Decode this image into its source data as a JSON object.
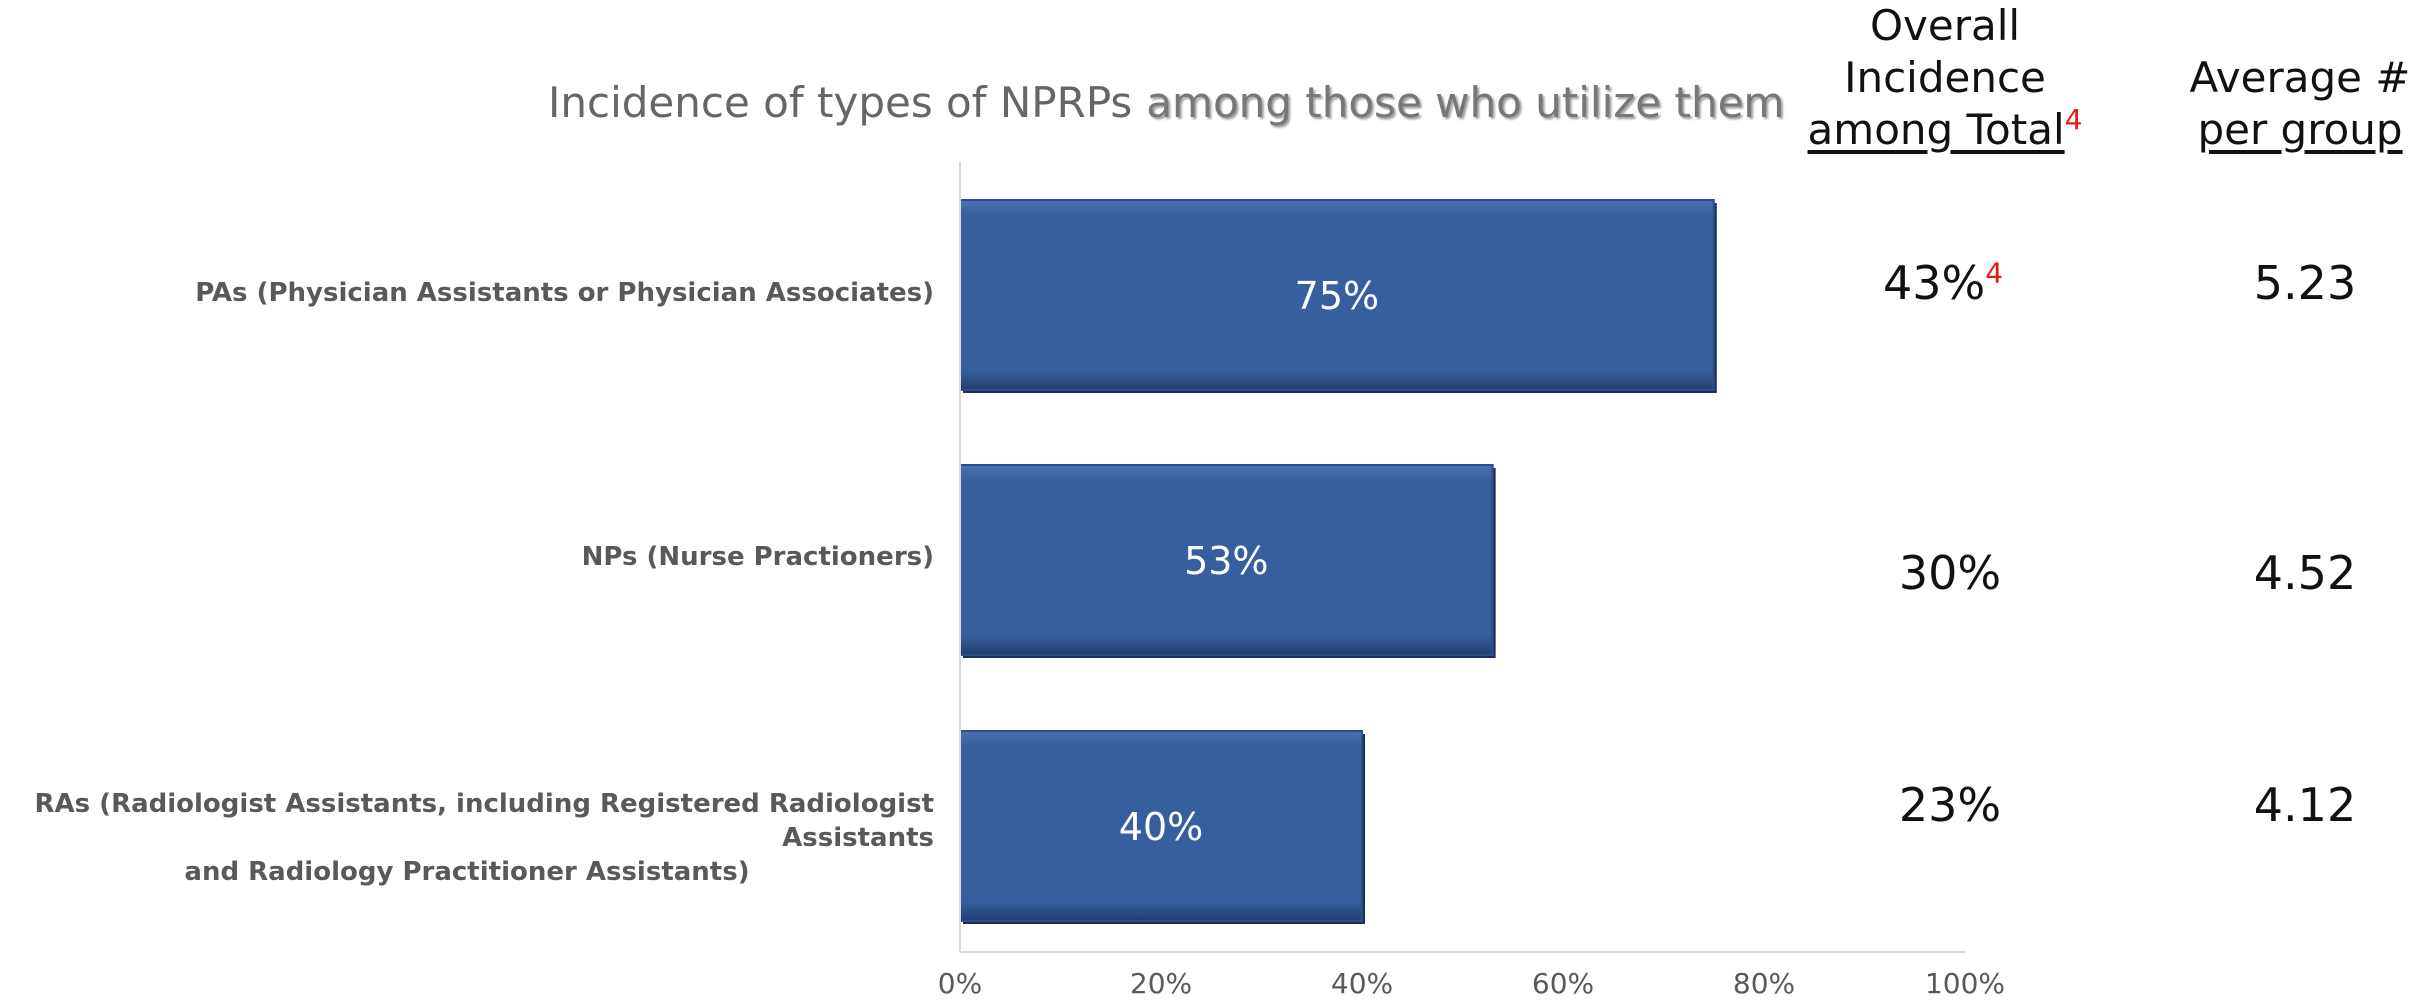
{
  "title": {
    "part1": "Incidence of types of NPRPs",
    "part2": "among those who utilize them"
  },
  "columns": {
    "overall": {
      "line1": "Overall",
      "line2": "Incidence",
      "line3": "among Total",
      "footnote": "4"
    },
    "average": {
      "line1": "Average #",
      "line2": "per group"
    }
  },
  "rows": [
    {
      "label_lines": [
        "PAs (Physician Assistants or Physician Associates)"
      ],
      "overall": "43%",
      "overall_footnote": "4",
      "average": "5.23"
    },
    {
      "label_lines": [
        "NPs (Nurse Practioners)"
      ],
      "overall": "30%",
      "overall_footnote": "",
      "average": "4.52"
    },
    {
      "label_lines": [
        "RAs (Radiologist Assistants, including Registered Radiologist Assistants",
        "and Radiology Practitioner Assistants)"
      ],
      "overall": "23%",
      "overall_footnote": "",
      "average": "4.12"
    }
  ],
  "chart_data": {
    "type": "bar",
    "orientation": "horizontal",
    "title": "Incidence of types of NPRPs among those who utilize them",
    "categories": [
      "PAs (Physician Assistants or Physician Associates)",
      "NPs (Nurse Practioners)",
      "RAs (Radiologist Assistants, including Registered Radiologist Assistants and Radiology Practitioner Assistants)"
    ],
    "values": [
      75,
      53,
      40
    ],
    "data_labels": [
      "75%",
      "53%",
      "40%"
    ],
    "xlim": [
      0,
      100
    ],
    "x_ticks": [
      "0%",
      "20%",
      "40%",
      "60%",
      "80%",
      "100%"
    ],
    "bar_color": "#375E9F",
    "grid": false,
    "legend": "none"
  }
}
